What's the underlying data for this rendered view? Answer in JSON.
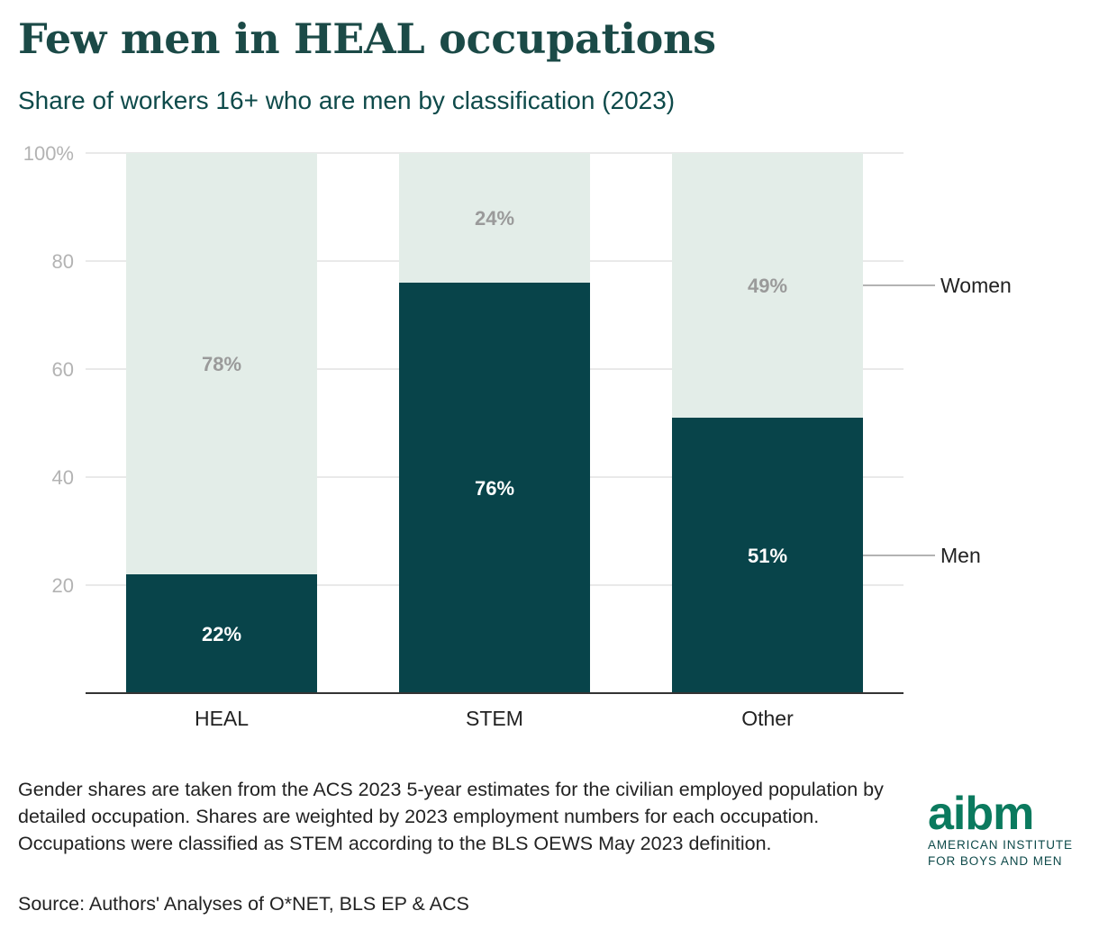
{
  "header": {
    "title": "Few men in HEAL occupations",
    "subtitle": "Share of workers 16+ who are men by classification (2023)"
  },
  "chart_data": {
    "type": "bar",
    "stacked": true,
    "categories": [
      "HEAL",
      "STEM",
      "Other"
    ],
    "series": [
      {
        "name": "Men",
        "values": [
          22,
          76,
          51
        ],
        "labels": [
          "22%",
          "76%",
          "51%"
        ],
        "color": "#08444a",
        "label_color": "#ffffff"
      },
      {
        "name": "Women",
        "values": [
          78,
          24,
          49
        ],
        "labels": [
          "78%",
          "24%",
          "49%"
        ],
        "color": "#e3ede8",
        "label_color": "#9a9a9a"
      }
    ],
    "ylim": [
      0,
      100
    ],
    "yticks": [
      20,
      40,
      60,
      80,
      100
    ],
    "ytick_labels": [
      "20",
      "40",
      "60",
      "80",
      "100%"
    ],
    "grid": true,
    "legend": [
      "Women",
      "Men"
    ],
    "legend_placement": "right, direct labels"
  },
  "footer": {
    "notes": "Gender shares are taken from the ACS 2023 5-year estimates for the civilian employed population by detailed occupation. Shares are weighted by 2023 employment numbers for each occupation. Occupations were classified as STEM according to the BLS OEWS May 2023 definition.",
    "source": "Source: Authors' Analyses of O*NET, BLS EP & ACS"
  },
  "logo": {
    "mark": "aibm",
    "line1": "AMERICAN INSTITUTE",
    "line2": "FOR BOYS AND MEN"
  },
  "colors": {
    "men": "#08444a",
    "women": "#e3ede8",
    "title": "#1b4a47",
    "logo": "#0b7a5e"
  }
}
